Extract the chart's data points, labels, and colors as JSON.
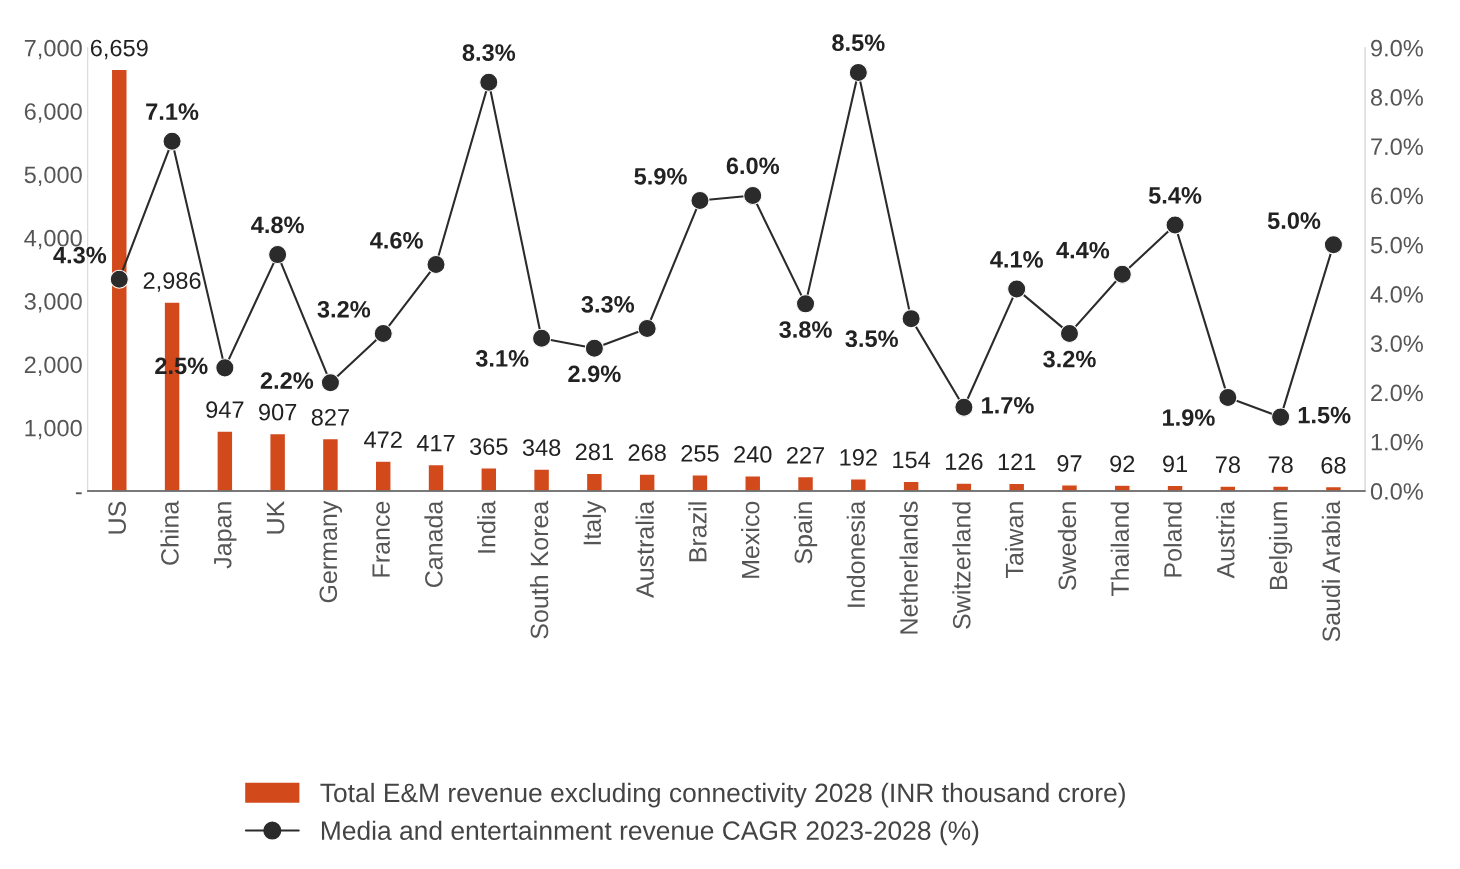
{
  "chart_data": {
    "type": "bar",
    "categories": [
      "US",
      "China",
      "Japan",
      "UK",
      "Germany",
      "France",
      "Canada",
      "India",
      "South Korea",
      "Italy",
      "Australia",
      "Brazil",
      "Mexico",
      "Spain",
      "Indonesia",
      "Netherlands",
      "Switzerland",
      "Taiwan",
      "Sweden",
      "Thailand",
      "Poland",
      "Austria",
      "Belgium",
      "Saudi Arabia"
    ],
    "series": [
      {
        "name": "Total E&M revenue excluding connectivity 2028 (INR thousand crore)",
        "type": "bar",
        "color": "#d2491c",
        "values": [
          6659,
          2986,
          947,
          907,
          827,
          472,
          417,
          365,
          348,
          281,
          268,
          255,
          240,
          227,
          192,
          154,
          126,
          121,
          97,
          92,
          91,
          78,
          78,
          68
        ],
        "value_labels": [
          "6,659",
          "2,986",
          "947",
          "907",
          "827",
          "472",
          "417",
          "365",
          "348",
          "281",
          "268",
          "255",
          "240",
          "227",
          "192",
          "154",
          "126",
          "121",
          "97",
          "92",
          "91",
          "78",
          "78",
          "68"
        ]
      },
      {
        "name": "Media and entertainment revenue CAGR 2023-2028 (%)",
        "type": "line",
        "axis": "y2",
        "color": "#2b2b2b",
        "marker": "circle",
        "values": [
          4.3,
          7.1,
          2.5,
          4.8,
          2.2,
          3.2,
          4.6,
          8.3,
          3.1,
          2.9,
          3.3,
          5.9,
          6.0,
          3.8,
          8.5,
          3.5,
          1.7,
          4.1,
          3.2,
          4.4,
          5.4,
          1.9,
          1.5,
          5.0
        ],
        "value_labels": [
          "4.3%",
          "7.1%",
          "2.5%",
          "4.8%",
          "2.2%",
          "3.2%",
          "4.6%",
          "8.3%",
          "3.1%",
          "2.9%",
          "3.3%",
          "5.9%",
          "6.0%",
          "3.8%",
          "8.5%",
          "3.5%",
          "1.7%",
          "4.1%",
          "3.2%",
          "4.4%",
          "5.4%",
          "1.9%",
          "1.5%",
          "5.0%"
        ]
      }
    ],
    "ylim": [
      0,
      7000
    ],
    "yticks": [
      {
        "value": 0,
        "label": "-"
      },
      {
        "value": 1000,
        "label": "1,000"
      },
      {
        "value": 2000,
        "label": "2,000"
      },
      {
        "value": 3000,
        "label": "3,000"
      },
      {
        "value": 4000,
        "label": "4,000"
      },
      {
        "value": 5000,
        "label": "5,000"
      },
      {
        "value": 6000,
        "label": "6,000"
      },
      {
        "value": 7000,
        "label": "7,000"
      }
    ],
    "y2lim": [
      0,
      9
    ],
    "y2ticks": [
      {
        "value": 0,
        "label": "0.0%"
      },
      {
        "value": 1,
        "label": "1.0%"
      },
      {
        "value": 2,
        "label": "2.0%"
      },
      {
        "value": 3,
        "label": "3.0%"
      },
      {
        "value": 4,
        "label": "4.0%"
      },
      {
        "value": 5,
        "label": "5.0%"
      },
      {
        "value": 6,
        "label": "6.0%"
      },
      {
        "value": 7,
        "label": "7.0%"
      },
      {
        "value": 8,
        "label": "8.0%"
      },
      {
        "value": 9,
        "label": "9.0%"
      }
    ],
    "grid": false,
    "legend": "bottom"
  }
}
